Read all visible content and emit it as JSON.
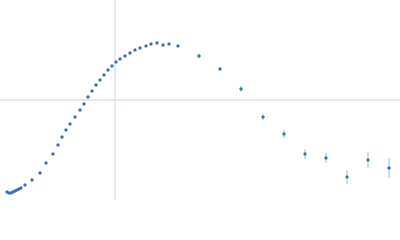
{
  "chart_data": {
    "type": "scatter",
    "color": "#3a6fb0",
    "x": [
      -1.08,
      -1.06,
      -1.04,
      -1.02,
      -1.0,
      -0.98,
      -0.96,
      -0.94,
      -0.9,
      -0.83,
      -0.75,
      -0.69,
      -0.62,
      -0.57,
      -0.53,
      -0.49,
      -0.45,
      -0.4,
      -0.35,
      -0.31,
      -0.27,
      -0.23,
      -0.19,
      -0.15,
      -0.11,
      -0.07,
      -0.03,
      0.01,
      0.05,
      0.1,
      0.15,
      0.2,
      0.25,
      0.31,
      0.36,
      0.42,
      0.48,
      0.54,
      0.63,
      0.84,
      1.05,
      1.26,
      1.48,
      1.69,
      1.9,
      2.11,
      2.32,
      2.53,
      2.74
    ],
    "values": [
      -0.92,
      -0.93,
      -0.93,
      -0.92,
      -0.91,
      -0.9,
      -0.89,
      -0.88,
      -0.85,
      -0.8,
      -0.73,
      -0.63,
      -0.54,
      -0.45,
      -0.37,
      -0.3,
      -0.24,
      -0.17,
      -0.1,
      -0.04,
      0.03,
      0.09,
      0.15,
      0.2,
      0.25,
      0.3,
      0.34,
      0.38,
      0.41,
      0.44,
      0.47,
      0.5,
      0.52,
      0.54,
      0.56,
      0.57,
      0.55,
      0.56,
      0.54,
      0.44,
      0.31,
      0.11,
      -0.17,
      -0.34,
      -0.54,
      -0.58,
      -0.77,
      -0.6,
      -0.68
    ],
    "errors": [
      0.01,
      0.01,
      0.01,
      0.01,
      0.01,
      0.01,
      0.01,
      0.01,
      0.01,
      0.01,
      0.01,
      0.01,
      0.01,
      0.01,
      0.01,
      0.01,
      0.01,
      0.01,
      0.01,
      0.01,
      0.01,
      0.01,
      0.01,
      0.01,
      0.01,
      0.01,
      0.01,
      0.01,
      0.01,
      0.01,
      0.01,
      0.01,
      0.01,
      0.01,
      0.01,
      0.01,
      0.01,
      0.01,
      0.01,
      0.02,
      0.02,
      0.03,
      0.03,
      0.04,
      0.05,
      0.05,
      0.07,
      0.08,
      0.1
    ],
    "xlim": [
      -1.15,
      2.85
    ],
    "ylim": [
      -1,
      1
    ]
  }
}
